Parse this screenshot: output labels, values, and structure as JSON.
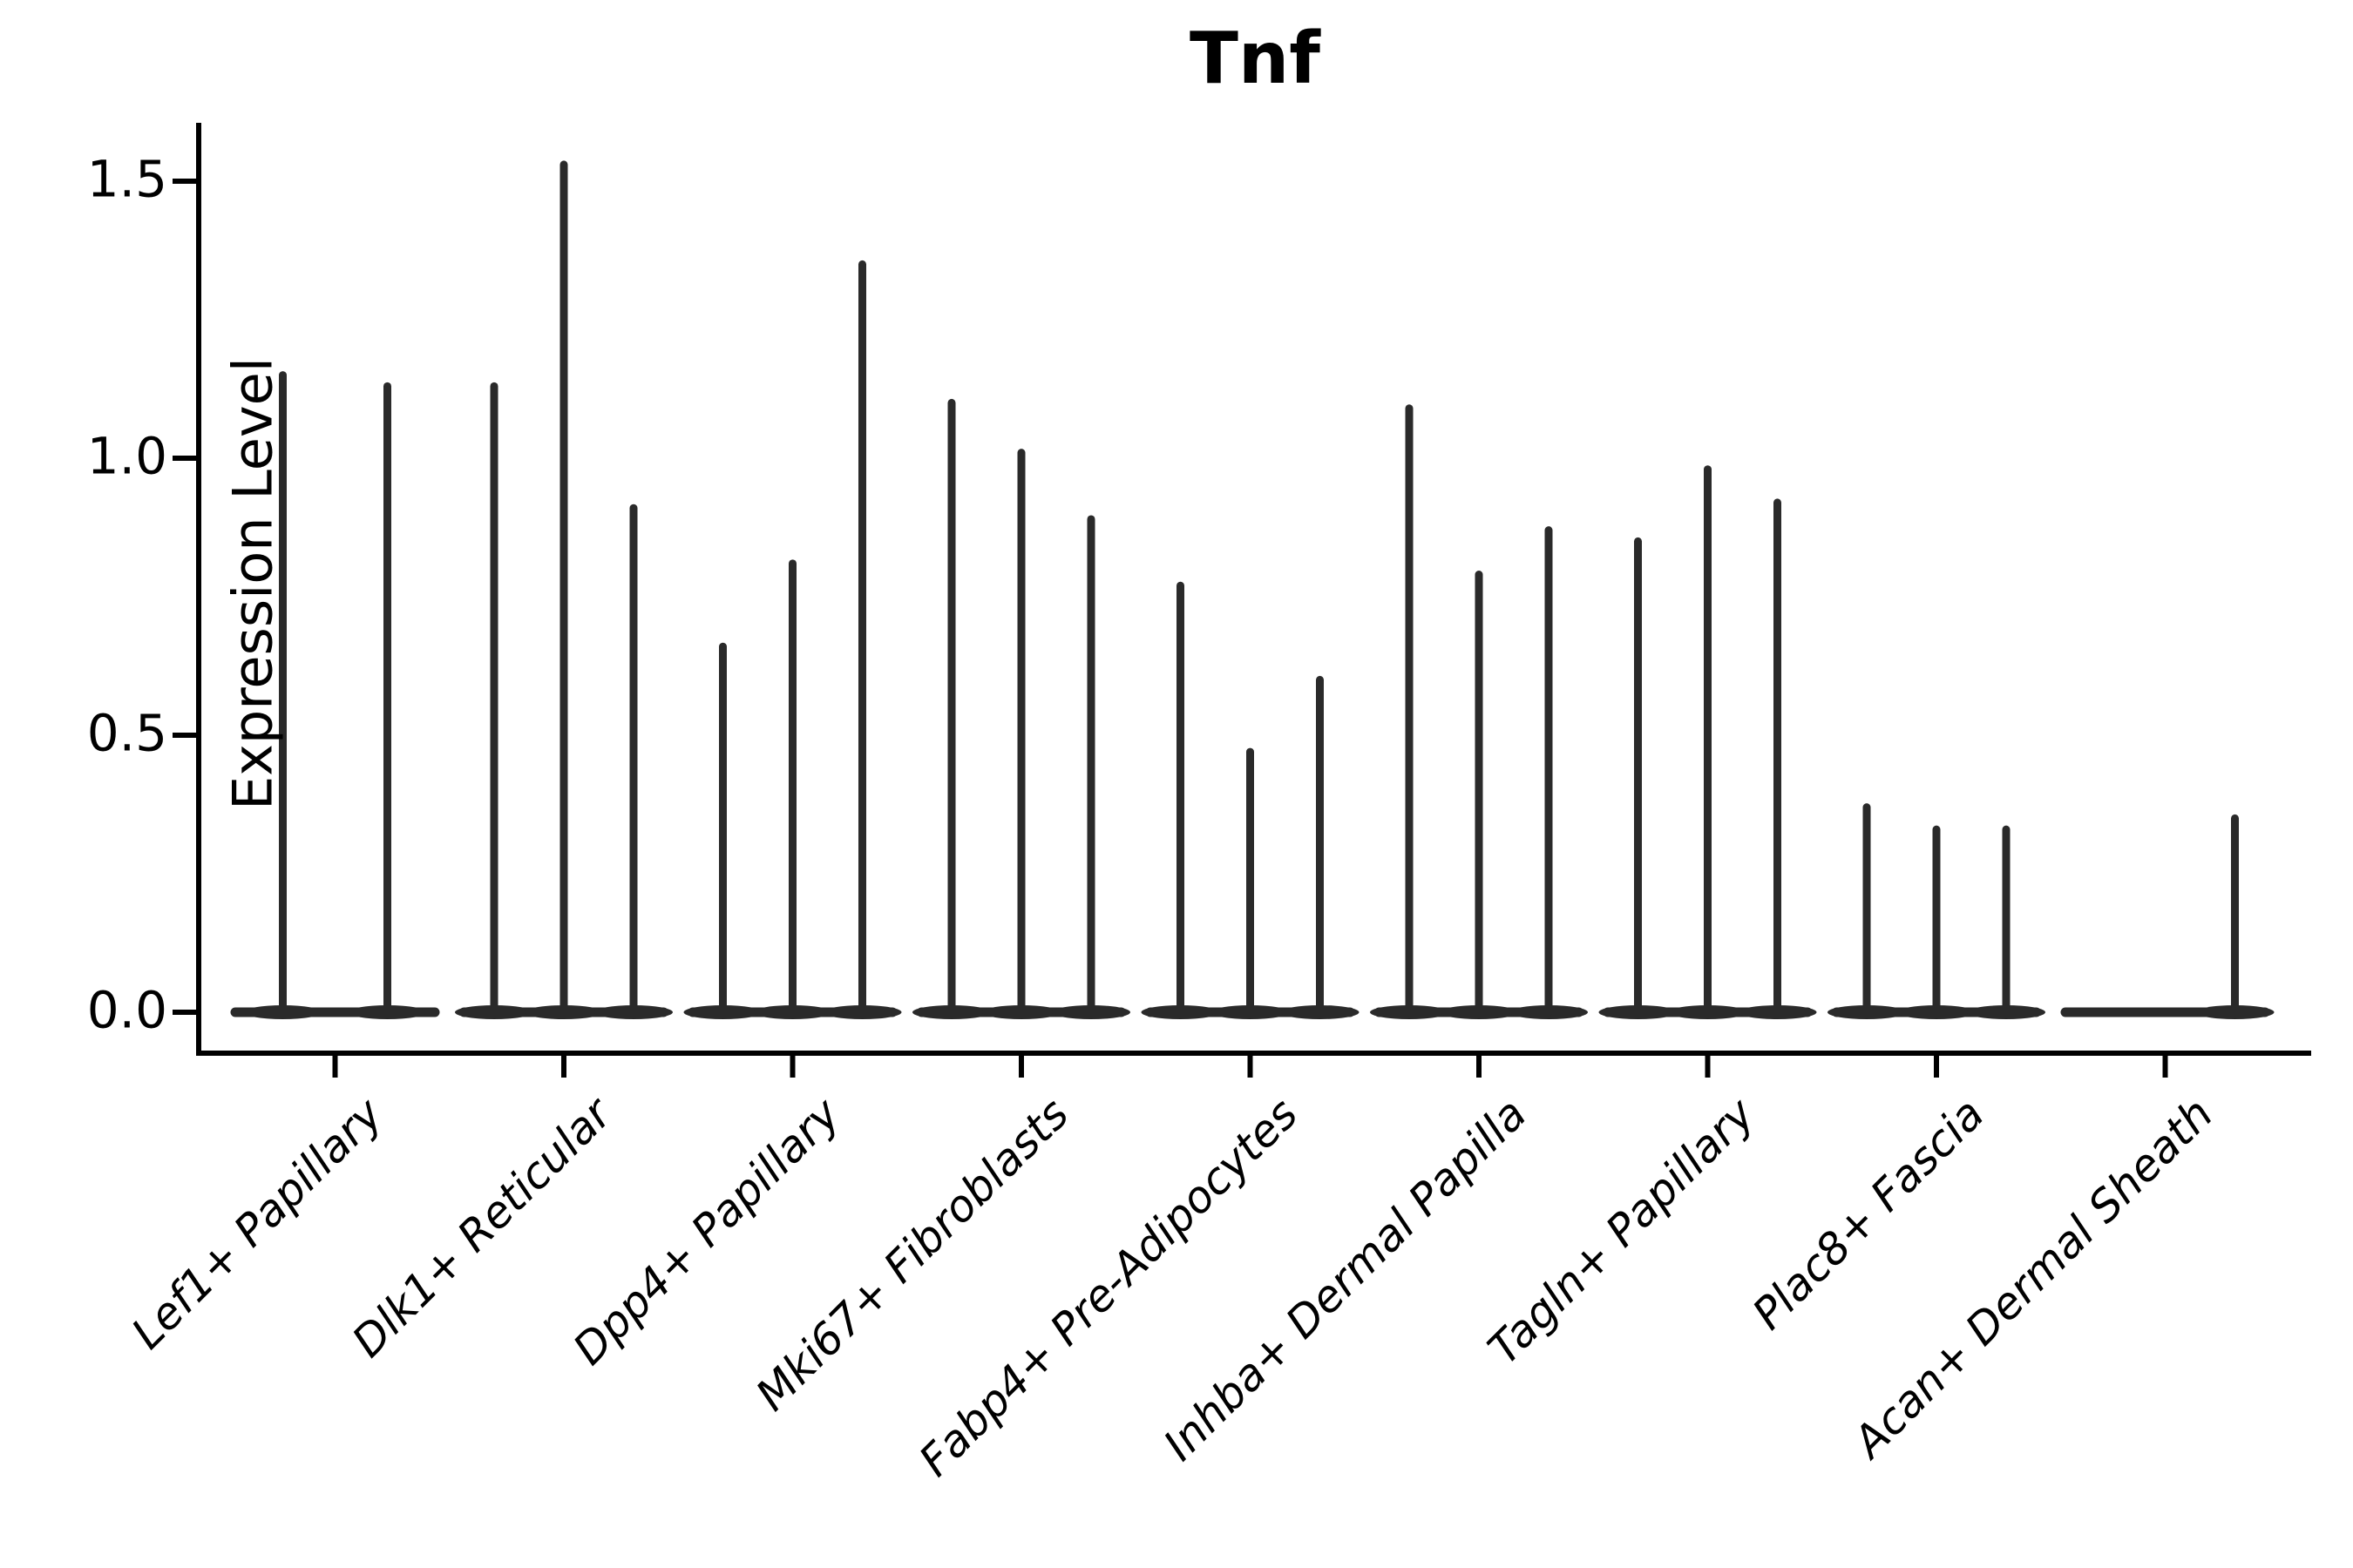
{
  "chart_data": {
    "type": "violin",
    "title": "Tnf",
    "ylabel": "Expression Level",
    "xlabel": "",
    "ylim": [
      0,
      1.6
    ],
    "yticks": [
      0,
      0.5,
      1.0,
      1.5
    ],
    "ytick_labels": [
      "0.0",
      "0.5",
      "1.0",
      "1.5"
    ],
    "grid": false,
    "legend": "none",
    "categories": [
      "Lef1+ Papillary",
      "Dlk1+ Reticular",
      "Dpp4+ Papillary",
      "Mki67+ Fibroblasts",
      "Fabp4+ Pre-Adipocytes",
      "Inhba+ Dermal Papilla",
      "Tagln+ Papillary",
      "Plac8+ Fascia",
      "Acan+ Dermal Sheath"
    ],
    "groups": [
      {
        "category": "Lef1+ Papillary",
        "violin_spike_maxima": [
          1.15,
          1.13
        ]
      },
      {
        "category": "Dlk1+ Reticular",
        "violin_spike_maxima": [
          1.13,
          1.53,
          0.91
        ]
      },
      {
        "category": "Dpp4+ Papillary",
        "violin_spike_maxima": [
          0.66,
          0.81,
          1.35
        ]
      },
      {
        "category": "Mki67+ Fibroblasts",
        "violin_spike_maxima": [
          1.1,
          1.01,
          0.89
        ]
      },
      {
        "category": "Fabp4+ Pre-Adipocytes",
        "violin_spike_maxima": [
          0.77,
          0.47,
          0.6
        ]
      },
      {
        "category": "Inhba+ Dermal Papilla",
        "violin_spike_maxima": [
          1.09,
          0.79,
          0.87
        ]
      },
      {
        "category": "Tagln+ Papillary",
        "violin_spike_maxima": [
          0.85,
          0.98,
          0.92
        ]
      },
      {
        "category": "Plac8+ Fascia",
        "violin_spike_maxima": [
          0.37,
          0.33,
          0.33
        ]
      },
      {
        "category": "Acan+ Dermal Sheath",
        "violin_spike_maxima": [
          0.0,
          0.0,
          0.35
        ]
      }
    ],
    "colors": {
      "violin_stroke": "#2a2a2a",
      "axis": "#000000",
      "background": "#ffffff"
    }
  }
}
